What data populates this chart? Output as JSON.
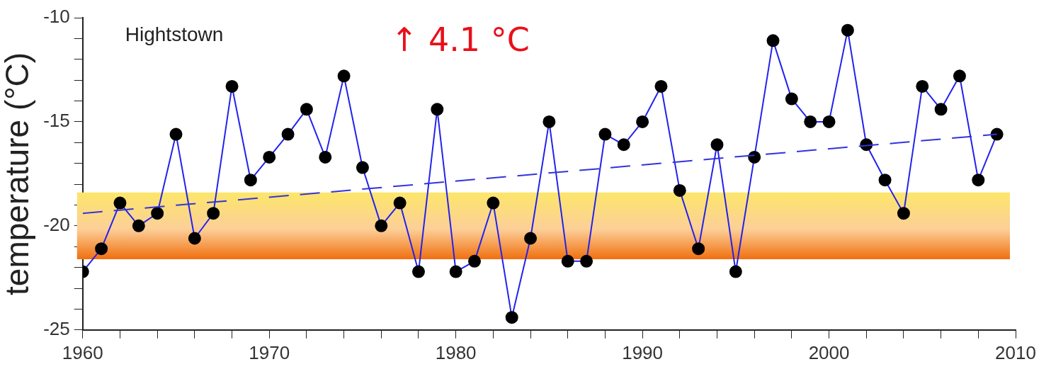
{
  "chart_data": {
    "type": "line",
    "ylabel": "temperature (°C)",
    "annotations": [
      "Hightstown",
      "↑ 4.1 °C"
    ],
    "x": [
      1960,
      1961,
      1962,
      1963,
      1964,
      1965,
      1966,
      1967,
      1968,
      1969,
      1970,
      1971,
      1972,
      1973,
      1974,
      1975,
      1976,
      1977,
      1978,
      1979,
      1980,
      1981,
      1982,
      1983,
      1984,
      1985,
      1986,
      1987,
      1988,
      1989,
      1990,
      1991,
      1992,
      1993,
      1994,
      1995,
      1996,
      1997,
      1998,
      1999,
      2000,
      2001,
      2002,
      2003,
      2004,
      2005,
      2006,
      2007,
      2008,
      2009
    ],
    "series": [
      {
        "color": "#2222ee",
        "marker": "circle",
        "colors": [
          "#000000",
          "#000000",
          "#000000",
          "#000000",
          "#000000",
          "#000000",
          "#000000",
          "#000000",
          "#000000",
          "#000000",
          "#000000",
          "#000000",
          "#000000",
          "#000000",
          "#000000",
          "#000000",
          "#000000",
          "#000000",
          "#000000",
          "#000000",
          "#000000",
          "#000000",
          "#000000",
          "#000000",
          "#000000",
          "#000000",
          "#000000",
          "#000000",
          "#000000",
          "#000000",
          "#000000",
          "#000000",
          "#000000",
          "#000000",
          "#000000",
          "#000000",
          "#000000",
          "#000000",
          "#000000",
          "#000000",
          "#000000",
          "#000000",
          "#000000",
          "#000000",
          "#000000",
          "#000000",
          "#000000",
          "#000000",
          "#000000",
          "#000000"
        ],
        "values": [
          -22.2,
          -21.1,
          -18.9,
          -20.0,
          -19.4,
          -15.6,
          -20.6,
          -19.4,
          -13.3,
          -17.8,
          -16.7,
          -15.6,
          -14.4,
          -16.7,
          -12.8,
          -17.2,
          -20.0,
          -18.9,
          -22.2,
          -14.4,
          -22.2,
          -21.7,
          -18.9,
          -24.4,
          -20.6,
          -15.0,
          -21.7,
          -21.7,
          -15.6,
          -16.1,
          -15.0,
          -13.3,
          -18.3,
          -21.1,
          -16.1,
          -22.2,
          -16.7,
          -11.1,
          -13.9,
          -15.0,
          -15.0,
          -10.6,
          -16.1,
          -17.8,
          -19.4,
          -13.3,
          -14.4,
          -12.8,
          -17.8,
          -15.6
        ]
      },
      {
        "type": "line",
        "color": "#3333dd",
        "line_style": "dashed",
        "marker": "none",
        "x": [
          1960,
          2009
        ],
        "values": [
          -19.4,
          -15.6
        ]
      }
    ],
    "bands": [
      {
        "axis": "y",
        "from": -21.6,
        "to": -18.4,
        "color": "#f07010"
      }
    ],
    "xlim": [
      1960,
      2010
    ],
    "xticks": [
      1960,
      {
        "value": 1962,
        "label": null
      },
      {
        "value": 1964,
        "label": null
      },
      {
        "value": 1966,
        "label": null
      },
      {
        "value": 1968,
        "label": null
      },
      1970,
      {
        "value": 1972,
        "label": null
      },
      {
        "value": 1974,
        "label": null
      },
      {
        "value": 1976,
        "label": null
      },
      {
        "value": 1978,
        "label": null
      },
      1980,
      {
        "value": 1982,
        "label": null
      },
      {
        "value": 1984,
        "label": null
      },
      {
        "value": 1986,
        "label": null
      },
      {
        "value": 1988,
        "label": null
      },
      1990,
      {
        "value": 1992,
        "label": null
      },
      {
        "value": 1994,
        "label": null
      },
      {
        "value": 1996,
        "label": null
      },
      {
        "value": 1998,
        "label": null
      },
      2000,
      {
        "value": 2002,
        "label": null
      },
      {
        "value": 2004,
        "label": null
      },
      {
        "value": 2006,
        "label": null
      },
      {
        "value": 2008,
        "label": null
      },
      2010
    ],
    "ylim": [
      -25,
      -10
    ],
    "yticks": [
      -25,
      {
        "value": -24,
        "label": null
      },
      {
        "value": -23,
        "label": null
      },
      {
        "value": -22,
        "label": null
      },
      {
        "value": -21,
        "label": null
      },
      -20,
      {
        "value": -19,
        "label": null
      },
      {
        "value": -18,
        "label": null
      },
      {
        "value": -17,
        "label": null
      },
      {
        "value": -16,
        "label": null
      },
      -15,
      {
        "value": -14,
        "label": null
      },
      {
        "value": -13,
        "label": null
      },
      {
        "value": -12,
        "label": null
      },
      {
        "value": -11,
        "label": null
      },
      -10
    ],
    "legend": false,
    "grid": false
  }
}
